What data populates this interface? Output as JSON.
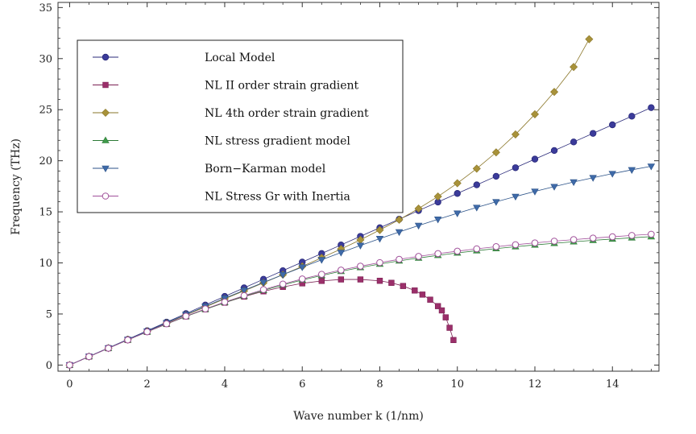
{
  "chart_data": {
    "type": "scatter",
    "xlabel": "Wave number k (1/nm)",
    "ylabel": "Frequency (THz)",
    "xlim": [
      -0.3,
      15.2
    ],
    "ylim": [
      -0.6,
      35.5
    ],
    "x_ticks": [
      0,
      2,
      4,
      6,
      8,
      10,
      12,
      14
    ],
    "y_ticks": [
      0,
      5,
      10,
      15,
      20,
      25,
      30,
      35
    ],
    "grid": false,
    "legend_position": "top-left",
    "series": [
      {
        "name": "Local Model",
        "marker": "circle",
        "color": "#3b3b9a",
        "stroke": "#2a2a7a",
        "x": [
          0,
          0.5,
          1,
          1.5,
          2,
          2.5,
          3,
          3.5,
          4,
          4.5,
          5,
          5.5,
          6,
          6.5,
          7,
          7.5,
          8,
          8.5,
          9,
          9.5,
          10,
          10.5,
          11,
          11.5,
          12,
          12.5,
          13,
          13.5,
          14,
          14.5,
          15
        ],
        "y": [
          0,
          0.84,
          1.68,
          2.52,
          3.36,
          4.2,
          5.04,
          5.88,
          6.72,
          7.56,
          8.4,
          9.24,
          10.08,
          10.92,
          11.76,
          12.6,
          13.44,
          14.28,
          15.12,
          15.96,
          16.8,
          17.64,
          18.48,
          19.32,
          20.16,
          21.0,
          21.84,
          22.68,
          23.52,
          24.36,
          25.2
        ]
      },
      {
        "name": "NL  II order strain gradient",
        "marker": "square",
        "color": "#9b2f6a",
        "stroke": "#7a1f52",
        "x": [
          0,
          0.5,
          1,
          1.5,
          2,
          2.5,
          3,
          3.5,
          4,
          4.5,
          5,
          5.5,
          6,
          6.5,
          7,
          7.5,
          8,
          8.3,
          8.6,
          8.9,
          9.1,
          9.3,
          9.5,
          9.6,
          9.7,
          9.8,
          9.9
        ],
        "y": [
          0,
          0.83,
          1.65,
          2.46,
          3.25,
          4.02,
          4.76,
          5.46,
          6.11,
          6.7,
          7.22,
          7.65,
          8.0,
          8.24,
          8.38,
          8.38,
          8.25,
          8.05,
          7.74,
          7.3,
          6.9,
          6.4,
          5.77,
          5.35,
          4.67,
          3.65,
          2.45
        ]
      },
      {
        "name": "NL 4th order strain gradient",
        "marker": "diamond",
        "color": "#a8923a",
        "stroke": "#8a7628",
        "x": [
          0,
          0.5,
          1,
          1.5,
          2,
          2.5,
          3,
          3.5,
          4,
          4.5,
          5,
          5.5,
          6,
          6.5,
          7,
          7.5,
          8,
          8.5,
          9,
          9.5,
          10,
          10.5,
          11,
          11.5,
          12,
          12.5,
          13,
          13.4
        ],
        "y": [
          0,
          0.83,
          1.66,
          2.49,
          3.3,
          4.1,
          4.9,
          5.69,
          6.48,
          7.26,
          8.05,
          8.85,
          9.66,
          10.5,
          11.36,
          12.26,
          13.22,
          14.23,
          15.32,
          16.5,
          17.8,
          19.23,
          20.82,
          22.58,
          24.55,
          26.74,
          29.18,
          31.9
        ]
      },
      {
        "name": "NL stress gradient model",
        "marker": "triangle-up",
        "color": "#3f9a4a",
        "stroke": "#2c7a36",
        "x": [
          0,
          0.5,
          1,
          1.5,
          2,
          2.5,
          3,
          3.5,
          4,
          4.5,
          5,
          5.5,
          6,
          6.5,
          7,
          7.5,
          8,
          8.5,
          9,
          9.5,
          10,
          10.5,
          11,
          11.5,
          12,
          12.5,
          13,
          13.5,
          14,
          14.5,
          15
        ],
        "y": [
          0,
          0.83,
          1.65,
          2.46,
          3.25,
          4.02,
          4.76,
          5.46,
          6.12,
          6.74,
          7.31,
          7.84,
          8.33,
          8.77,
          9.18,
          9.55,
          9.89,
          10.2,
          10.48,
          10.74,
          10.98,
          11.2,
          11.4,
          11.59,
          11.76,
          11.92,
          12.07,
          12.21,
          12.34,
          12.46,
          12.57
        ]
      },
      {
        "name": "Born−Karman model",
        "marker": "triangle-down",
        "color": "#3f6aa8",
        "stroke": "#2b5288",
        "x": [
          0,
          0.5,
          1,
          1.5,
          2,
          2.5,
          3,
          3.5,
          4,
          4.5,
          5,
          5.5,
          6,
          6.5,
          7,
          7.5,
          8,
          8.5,
          9,
          9.5,
          10,
          10.5,
          11,
          11.5,
          12,
          12.5,
          13,
          13.5,
          14,
          14.5,
          15
        ],
        "y": [
          0,
          0.84,
          1.67,
          2.5,
          3.32,
          4.14,
          4.95,
          5.75,
          6.54,
          7.32,
          8.09,
          8.85,
          9.59,
          10.31,
          11.02,
          11.71,
          12.38,
          13.03,
          13.66,
          14.27,
          14.86,
          15.43,
          15.98,
          16.5,
          17.0,
          17.47,
          17.92,
          18.34,
          18.74,
          19.11,
          19.46
        ]
      },
      {
        "name": "NL Stress Gr with Inertia",
        "marker": "circle-open",
        "color": "#ffffff",
        "stroke": "#a0509a",
        "x": [
          0,
          0.5,
          1,
          1.5,
          2,
          2.5,
          3,
          3.5,
          4,
          4.5,
          5,
          5.5,
          6,
          6.5,
          7,
          7.5,
          8,
          8.5,
          9,
          9.5,
          10,
          10.5,
          11,
          11.5,
          12,
          12.5,
          13,
          13.5,
          14,
          14.5,
          15
        ],
        "y": [
          0,
          0.83,
          1.65,
          2.46,
          3.26,
          4.04,
          4.79,
          5.5,
          6.17,
          6.8,
          7.39,
          7.93,
          8.43,
          8.88,
          9.3,
          9.68,
          10.03,
          10.35,
          10.64,
          10.91,
          11.15,
          11.38,
          11.59,
          11.78,
          11.96,
          12.13,
          12.28,
          12.43,
          12.56,
          12.69,
          12.81
        ]
      }
    ]
  }
}
